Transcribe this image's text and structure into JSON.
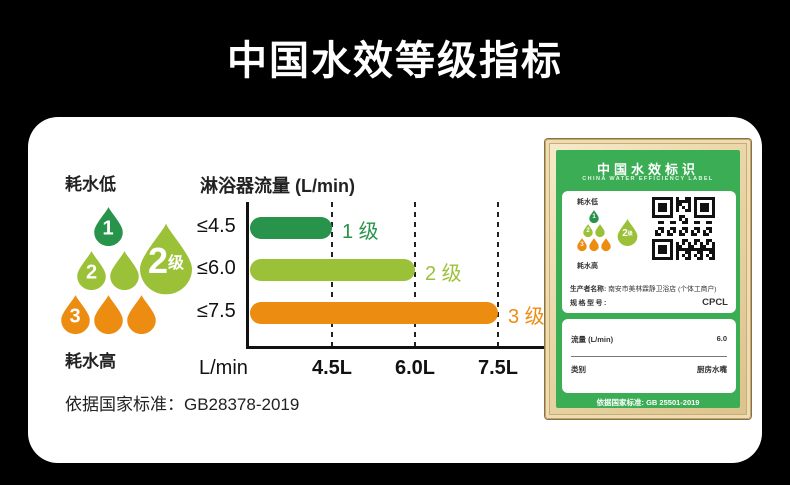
{
  "page": {
    "title": "中国水效等级指标",
    "standard_note": "依据国家标准：GB28378-2019",
    "background_color": "#000000",
    "card_color": "#ffffff"
  },
  "grade_legend": {
    "low_label": "耗水低",
    "high_label": "耗水高",
    "big_badge": {
      "number": "2",
      "suffix": "级"
    },
    "drops": [
      {
        "grade": "1",
        "count": 1,
        "color": "#28934a"
      },
      {
        "grade": "2",
        "count": 2,
        "color": "#9bc138"
      },
      {
        "grade": "3",
        "count": 3,
        "color": "#ec8c11"
      }
    ]
  },
  "chart_data": {
    "type": "bar",
    "title": "淋浴器流量 (L/min)",
    "categories": [
      "≤4.5",
      "≤6.0",
      "≤7.5"
    ],
    "values": [
      4.5,
      6.0,
      7.5
    ],
    "bar_labels": [
      "1 级",
      "2 级",
      "3 级"
    ],
    "bar_colors": [
      "#28934a",
      "#9bc138",
      "#ec8c11"
    ],
    "xlabel": "L/min",
    "x_ticks": [
      "4.5L",
      "6.0L",
      "7.5L"
    ],
    "x_scale": "equal-interval-ticks",
    "grid": "dashed-vertical",
    "orientation": "horizontal"
  },
  "efficiency_label": {
    "title": "中国水效标识",
    "subtitle": "CHINA WATER EFFICIENCY LABEL",
    "green_color": "#3bae55",
    "low_label": "耗水低",
    "high_label": "耗水高",
    "big_badge": {
      "number": "2",
      "suffix": "级"
    },
    "qr_icon": "qr-code",
    "producer_label": "生产者名称:",
    "producer_value": "南安市美林霖静卫浴店 (个体工商户)",
    "model_label": "规格型号:",
    "model_value": "CPCL",
    "flow_label": "流量 (L/min)",
    "flow_value": "6.0",
    "category_label": "类别",
    "category_value": "厨房水嘴",
    "standard_note": "依据国家标准: GB 25501-2019"
  }
}
